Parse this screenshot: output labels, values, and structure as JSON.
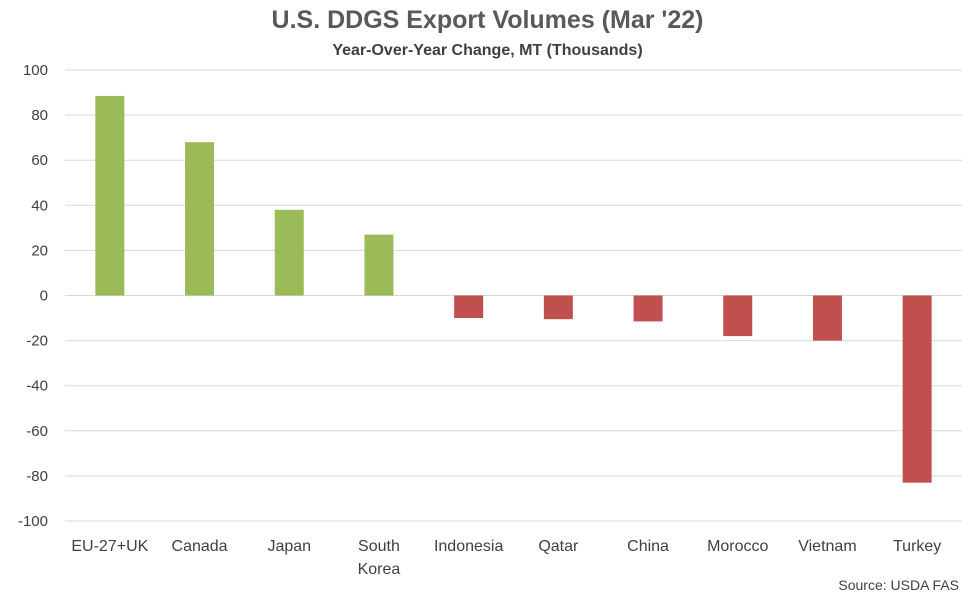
{
  "chart_data": {
    "type": "bar",
    "title": "U.S. DDGS Export Volumes (Mar '22)",
    "subtitle": "Year-Over-Year Change, MT (Thousands)",
    "xlabel": "",
    "ylabel": "",
    "ylim": [
      -100,
      100
    ],
    "yticks": [
      100,
      80,
      60,
      40,
      20,
      0,
      -20,
      -40,
      -60,
      -80,
      -100
    ],
    "grid": true,
    "categories": [
      [
        "EU-27+UK"
      ],
      [
        "Canada"
      ],
      [
        "Japan"
      ],
      [
        "South",
        "Korea"
      ],
      [
        "Indonesia"
      ],
      [
        "Qatar"
      ],
      [
        "China"
      ],
      [
        "Morocco"
      ],
      [
        "Vietnam"
      ],
      [
        "Turkey"
      ]
    ],
    "values": [
      88.5,
      68,
      38,
      27,
      -10,
      -10.5,
      -11.5,
      -18,
      -20,
      -83
    ],
    "positive_color": "#9BBB59",
    "negative_color": "#C0504D",
    "source": "Source: USDA FAS"
  }
}
